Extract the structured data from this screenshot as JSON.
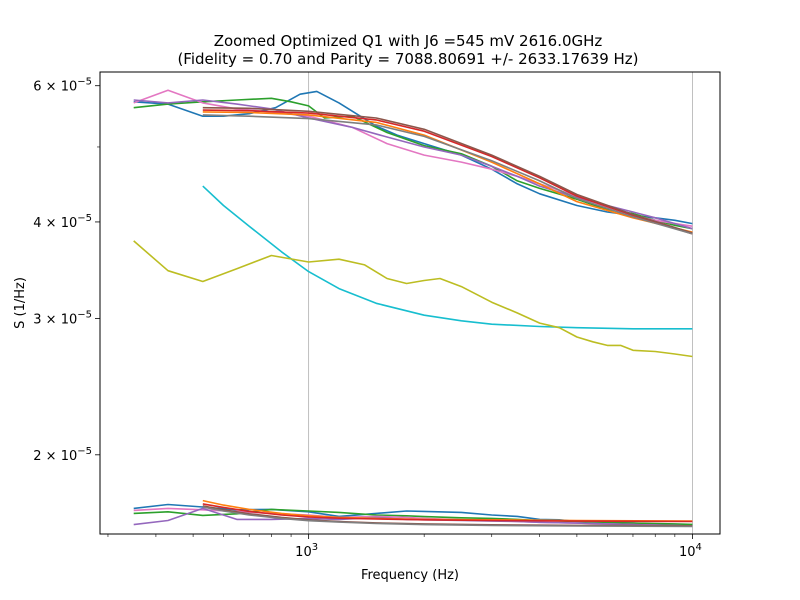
{
  "chart_data": {
    "type": "line",
    "title_line1": "Zoomed Optimized Q1 with J6 =545 mV 2616.0GHz",
    "title_line2": "(Fidelity = 0.70 and Parity = 7088.80691 +/- 2633.17639 Hz)",
    "xlabel": "Frequency (Hz)",
    "ylabel": "S (1/Hz)",
    "xscale": "log",
    "yscale": "log",
    "xlim": [
      286,
      11800
    ],
    "ylim": [
      1.58e-05,
      6.25e-05
    ],
    "grid": "x-major",
    "legend": "none",
    "x_ticks": [
      {
        "value": 1000,
        "base": "10",
        "exp": "3"
      },
      {
        "value": 10000,
        "base": "10",
        "exp": "4"
      }
    ],
    "y_ticks": [
      {
        "value": 2e-05,
        "mant": "2",
        "base": "10",
        "exp": "−5"
      },
      {
        "value": 3e-05,
        "mant": "3",
        "base": "10",
        "exp": "−5"
      },
      {
        "value": 4e-05,
        "mant": "4",
        "base": "10",
        "exp": "−5"
      },
      {
        "value": 6e-05,
        "mant": "6",
        "base": "10",
        "exp": "−5"
      }
    ],
    "y_minor_ticks": [
      5e-05
    ],
    "series": [
      {
        "color": "#1f77b4",
        "x": [
          350,
          430,
          530,
          600,
          700,
          820,
          950,
          1050,
          1200,
          1500,
          1700,
          2000,
          2500,
          3000,
          3500,
          4000,
          5000,
          6000,
          7000,
          8000,
          9000,
          10000
        ],
        "y": [
          5.72e-05,
          5.68e-05,
          5.48e-05,
          5.48e-05,
          5.52e-05,
          5.62e-05,
          5.85e-05,
          5.9e-05,
          5.7e-05,
          5.32e-05,
          5.18e-05,
          5.05e-05,
          4.88e-05,
          4.68e-05,
          4.48e-05,
          4.35e-05,
          4.2e-05,
          4.12e-05,
          4.08e-05,
          4.05e-05,
          4.02e-05,
          3.98e-05
        ]
      },
      {
        "color": "#2ca02c",
        "x": [
          350,
          430,
          530,
          650,
          800,
          900,
          1000,
          1100,
          1300,
          1600,
          2000,
          2500,
          3000,
          3500,
          4000,
          5000,
          6000,
          7000,
          8000,
          9000,
          10000
        ],
        "y": [
          5.62e-05,
          5.68e-05,
          5.72e-05,
          5.75e-05,
          5.78e-05,
          5.72e-05,
          5.65e-05,
          5.45e-05,
          5.48e-05,
          5.22e-05,
          5.02e-05,
          4.9e-05,
          4.72e-05,
          4.52e-05,
          4.42e-05,
          4.28e-05,
          4.15e-05,
          4.1e-05,
          4.02e-05,
          3.96e-05,
          3.92e-05
        ]
      },
      {
        "color": "#e377c2",
        "x": [
          350,
          430,
          530,
          650,
          800,
          1000,
          1300,
          1600,
          2000,
          2500,
          3000,
          3500,
          4000,
          5000,
          6000,
          7000,
          8000,
          9000,
          10000
        ],
        "y": [
          5.7e-05,
          5.92e-05,
          5.7e-05,
          5.6e-05,
          5.55e-05,
          5.48e-05,
          5.3e-05,
          5.05e-05,
          4.88e-05,
          4.78e-05,
          4.68e-05,
          4.58e-05,
          4.48e-05,
          4.32e-05,
          4.18e-05,
          4.08e-05,
          4.02e-05,
          3.98e-05,
          3.95e-05
        ]
      },
      {
        "color": "#9467bd",
        "x": [
          350,
          430,
          530,
          650,
          800,
          1000,
          1300,
          1600,
          2000,
          2500,
          3000,
          3500,
          4000,
          5000,
          6000,
          7000,
          8000,
          9000,
          10000
        ],
        "y": [
          5.75e-05,
          5.7e-05,
          5.75e-05,
          5.68e-05,
          5.6e-05,
          5.45e-05,
          5.3e-05,
          5.15e-05,
          5e-05,
          4.88e-05,
          4.72e-05,
          4.58e-05,
          4.45e-05,
          4.3e-05,
          4.2e-05,
          4.12e-05,
          4.05e-05,
          3.98e-05,
          3.92e-05
        ]
      },
      {
        "color": "#ff7f0e",
        "x": [
          530,
          700,
          1000,
          1500,
          2000,
          3000,
          4000,
          5000,
          7000,
          10000
        ],
        "y": [
          5.55e-05,
          5.54e-05,
          5.5e-05,
          5.38e-05,
          5.18e-05,
          4.78e-05,
          4.48e-05,
          4.25e-05,
          4.05e-05,
          3.88e-05
        ]
      },
      {
        "color": "#d62728",
        "x": [
          530,
          700,
          1000,
          1500,
          2000,
          3000,
          4000,
          5000,
          7000,
          10000
        ],
        "y": [
          5.58e-05,
          5.57e-05,
          5.53e-05,
          5.42e-05,
          5.24e-05,
          4.86e-05,
          4.56e-05,
          4.32e-05,
          4.08e-05,
          3.86e-05
        ]
      },
      {
        "color": "#8c564b",
        "x": [
          530,
          700,
          1000,
          1500,
          2000,
          3000,
          4000,
          5000,
          7000,
          10000
        ],
        "y": [
          5.62e-05,
          5.61e-05,
          5.56e-05,
          5.45e-05,
          5.27e-05,
          4.88e-05,
          4.58e-05,
          4.34e-05,
          4.09e-05,
          3.87e-05
        ]
      },
      {
        "color": "#7f7f7f",
        "x": [
          530,
          700,
          1000,
          1500,
          2000,
          3000,
          4000,
          5000,
          7000,
          10000
        ],
        "y": [
          5.5e-05,
          5.48e-05,
          5.44e-05,
          5.34e-05,
          5.16e-05,
          4.8e-05,
          4.52e-05,
          4.29e-05,
          4.06e-05,
          3.86e-05
        ]
      },
      {
        "color": "#17becf",
        "x": [
          530,
          600,
          700,
          850,
          1000,
          1200,
          1500,
          2000,
          2500,
          3000,
          4000,
          5000,
          7000,
          10000
        ],
        "y": [
          4.45e-05,
          4.2e-05,
          3.95e-05,
          3.66e-05,
          3.45e-05,
          3.28e-05,
          3.14e-05,
          3.03e-05,
          2.98e-05,
          2.95e-05,
          2.93e-05,
          2.92e-05,
          2.91e-05,
          2.91e-05
        ]
      },
      {
        "color": "#bcbd22",
        "x": [
          350,
          430,
          530,
          650,
          800,
          1000,
          1200,
          1400,
          1600,
          1800,
          2000,
          2200,
          2500,
          3000,
          3500,
          4000,
          4500,
          5000,
          5500,
          6000,
          6500,
          7000,
          8000,
          9000,
          10000
        ],
        "y": [
          3.78e-05,
          3.46e-05,
          3.35e-05,
          3.48e-05,
          3.62e-05,
          3.55e-05,
          3.58e-05,
          3.52e-05,
          3.38e-05,
          3.33e-05,
          3.36e-05,
          3.38e-05,
          3.3e-05,
          3.15e-05,
          3.05e-05,
          2.96e-05,
          2.92e-05,
          2.84e-05,
          2.8e-05,
          2.77e-05,
          2.77e-05,
          2.73e-05,
          2.72e-05,
          2.7e-05,
          2.68e-05
        ]
      },
      {
        "color": "#1f77b4",
        "x": [
          350,
          430,
          530,
          650,
          800,
          1000,
          1200,
          1500,
          1800,
          2000,
          2500,
          3000,
          3500,
          4000,
          4500,
          5000,
          6000,
          7000,
          8000,
          9000,
          10000
        ],
        "y": [
          1.705e-05,
          1.725e-05,
          1.712e-05,
          1.698e-05,
          1.7e-05,
          1.688e-05,
          1.665e-05,
          1.68e-05,
          1.692e-05,
          1.69e-05,
          1.685e-05,
          1.672e-05,
          1.665e-05,
          1.65e-05,
          1.648e-05,
          1.64e-05,
          1.635e-05,
          1.632e-05,
          1.628e-05,
          1.625e-05,
          1.622e-05
        ]
      },
      {
        "color": "#2ca02c",
        "x": [
          350,
          430,
          530,
          650,
          800,
          1000,
          1200,
          1500,
          1800,
          2000,
          2500,
          3000,
          3500,
          4000,
          5000,
          6000,
          7000,
          8000,
          9000,
          10000
        ],
        "y": [
          1.68e-05,
          1.688e-05,
          1.67e-05,
          1.678e-05,
          1.7e-05,
          1.692e-05,
          1.685e-05,
          1.672e-05,
          1.668e-05,
          1.664e-05,
          1.658e-05,
          1.655e-05,
          1.65e-05,
          1.645e-05,
          1.64e-05,
          1.635e-05,
          1.632e-05,
          1.63e-05,
          1.628e-05,
          1.626e-05
        ]
      },
      {
        "color": "#e377c2",
        "x": [
          350,
          430,
          530,
          650,
          800,
          1000,
          1200,
          1500,
          1800,
          2000,
          2500,
          3000,
          3500,
          4000,
          5000,
          6000,
          7000,
          8000,
          9000,
          10000
        ],
        "y": [
          1.695e-05,
          1.705e-05,
          1.698e-05,
          1.69e-05,
          1.68e-05,
          1.672e-05,
          1.66e-05,
          1.665e-05,
          1.66e-05,
          1.655e-05,
          1.648e-05,
          1.645e-05,
          1.64e-05,
          1.636e-05,
          1.632e-05,
          1.628e-05,
          1.625e-05,
          1.623e-05,
          1.62e-05,
          1.618e-05
        ]
      },
      {
        "color": "#9467bd",
        "x": [
          350,
          430,
          530,
          650,
          800,
          1000,
          1200,
          1500,
          1800,
          2000,
          2500,
          3000,
          3500,
          4000,
          5000,
          6000,
          7000,
          8000,
          9000,
          10000
        ],
        "y": [
          1.625e-05,
          1.645e-05,
          1.705e-05,
          1.65e-05,
          1.65e-05,
          1.655e-05,
          1.65e-05,
          1.66e-05,
          1.65e-05,
          1.648e-05,
          1.645e-05,
          1.642e-05,
          1.64e-05,
          1.636e-05,
          1.632e-05,
          1.628e-05,
          1.625e-05,
          1.622e-05,
          1.62e-05,
          1.618e-05
        ]
      },
      {
        "color": "#ff7f0e",
        "x": [
          530,
          600,
          700,
          850,
          1000,
          1200,
          1500,
          2000,
          3000,
          5000,
          10000
        ],
        "y": [
          1.745e-05,
          1.722e-05,
          1.7e-05,
          1.68e-05,
          1.668e-05,
          1.66e-05,
          1.655e-05,
          1.65e-05,
          1.648e-05,
          1.645e-05,
          1.642e-05
        ]
      },
      {
        "color": "#d62728",
        "x": [
          530,
          600,
          700,
          850,
          1000,
          1200,
          1500,
          2000,
          3000,
          5000,
          10000
        ],
        "y": [
          1.728e-05,
          1.71e-05,
          1.69e-05,
          1.672e-05,
          1.662e-05,
          1.656e-05,
          1.652e-05,
          1.648e-05,
          1.645e-05,
          1.642e-05,
          1.64e-05
        ]
      },
      {
        "color": "#8c564b",
        "x": [
          530,
          600,
          700,
          850,
          1000,
          1200,
          1500,
          2000,
          3000,
          5000,
          10000
        ],
        "y": [
          1.718e-05,
          1.698e-05,
          1.678e-05,
          1.66e-05,
          1.648e-05,
          1.64e-05,
          1.633e-05,
          1.628e-05,
          1.624e-05,
          1.621e-05,
          1.619e-05
        ]
      },
      {
        "color": "#7f7f7f",
        "x": [
          530,
          600,
          700,
          850,
          1000,
          1200,
          1500,
          2000,
          3000,
          5000,
          10000
        ],
        "y": [
          1.712e-05,
          1.692e-05,
          1.672e-05,
          1.655e-05,
          1.644e-05,
          1.637e-05,
          1.63e-05,
          1.625e-05,
          1.621e-05,
          1.618e-05,
          1.616e-05
        ]
      }
    ]
  }
}
